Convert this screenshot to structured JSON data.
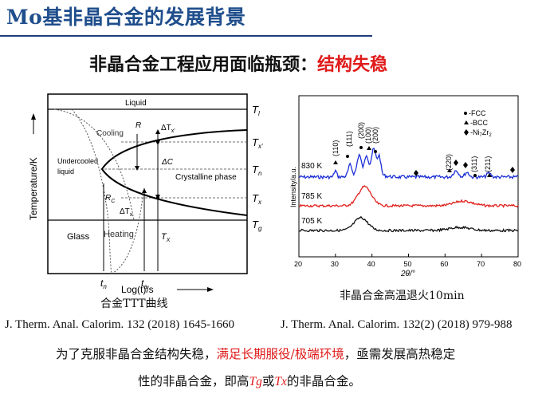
{
  "header": {
    "title": "Mo基非晶合金的发展背景",
    "headline_prefix": "非晶合金工程应用面临瓶颈：",
    "headline_highlight": "结构失稳"
  },
  "ttt_figure": {
    "labels": {
      "liquid": "Liquid",
      "cooling": "Cooling",
      "R": "R",
      "undercooled_1": "Undercooled",
      "undercooled_2": "liquid",
      "crystalline": "Crystalline phase",
      "delta_tx_prime": "ΔT",
      "delta_tx_prime_sub": "x'",
      "delta_c": "ΔC",
      "Rc": "R",
      "Rc_sub": "C",
      "delta_tx": "ΔT",
      "delta_tx_sub": "x",
      "glass": "Glass",
      "heating": "Heating",
      "Tx_inner": "T",
      "Tx_inner_sub": "X",
      "ylabel": "Temperature/K",
      "xlabel": "Log(t)/s",
      "tn": "t",
      "tn_sub": "n",
      "ta": "t",
      "ta_sub": "a"
    },
    "right_labels": [
      {
        "main": "T",
        "sub": "l"
      },
      {
        "main": "T",
        "sub": "x'"
      },
      {
        "main": "T",
        "sub": "n"
      },
      {
        "main": "T",
        "sub": "x"
      },
      {
        "main": "T",
        "sub": "g"
      }
    ],
    "caption": "合金TTT曲线"
  },
  "xrd_figure": {
    "legend": [
      "-FCC",
      "-BCC",
      "-Ni",
      "Zr"
    ],
    "legend_parts": {
      "ni": "-Ni",
      "ni_sub": "7",
      "zr": "Zr",
      "zr_sub": "2"
    },
    "peak_labels": [
      "(110)",
      "(111)",
      "(200)",
      "(100)",
      "(200)",
      "(220)",
      "(311)",
      "(211)"
    ],
    "curve_labels": [
      "830 K",
      "785 K",
      "705 K"
    ],
    "ylabel": "Intensity/a.u.",
    "xlabel": "2θ/°",
    "xticks": [
      "20",
      "30",
      "40",
      "50",
      "60",
      "70",
      "80"
    ],
    "caption": "非晶合金高温退火10min"
  },
  "references": {
    "left": "J. Therm. Anal. Calorim. 132 (2018) 1645-1660",
    "right": "J. Therm. Anal. Calorim. 132(2) (2018) 979-988"
  },
  "conclusion": {
    "line1_a": "为了克服非晶合金结构失稳，",
    "line1_red": "满足长期服役/极端环境",
    "line1_b": "，亟需发展高热稳定",
    "line2_a": "性的非晶合金，即高",
    "tg": "Tg",
    "or": "或",
    "tx": "Tx",
    "line2_b": "的非晶合金。"
  },
  "colors": {
    "title_blue": "#1f4e8c",
    "highlight_red": "#e01b1b",
    "curve_830": "#1c2fd6",
    "curve_785": "#e0201c",
    "curve_705": "#111111"
  }
}
